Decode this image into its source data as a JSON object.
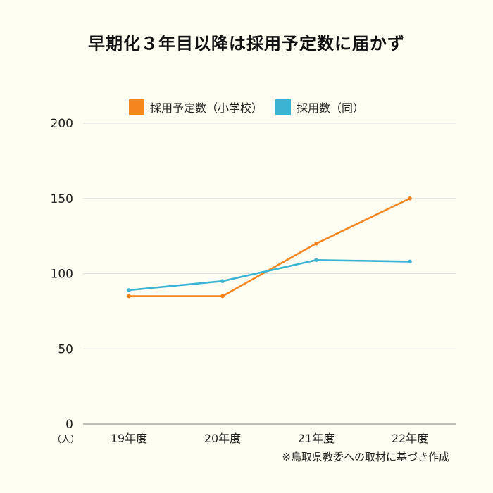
{
  "title": "早期化３年目以降は採用予定数に届かず",
  "unit_label": "（人）",
  "source_note": "※鳥取県教委への取材に基づき作成",
  "colors": {
    "background": "#fefef2",
    "planned": "#f5851f",
    "actual": "#3bb4d4",
    "grid": "#dddddd",
    "axis": "#999999",
    "text": "#222222"
  },
  "chart_data": {
    "type": "line",
    "title": "早期化３年目以降は採用予定数に届かず",
    "categories": [
      "19年度",
      "20年度",
      "21年度",
      "22年度"
    ],
    "series": [
      {
        "name": "採用予定数（小学校）",
        "values": [
          85,
          85,
          120,
          150
        ]
      },
      {
        "name": "採用数（同）",
        "values": [
          89,
          95,
          109,
          108
        ]
      }
    ],
    "ylabel": "（人）",
    "ylim": [
      0,
      200
    ],
    "yticks": [
      0,
      50,
      100,
      150,
      200
    ],
    "grid": true,
    "legend": "top-center"
  }
}
